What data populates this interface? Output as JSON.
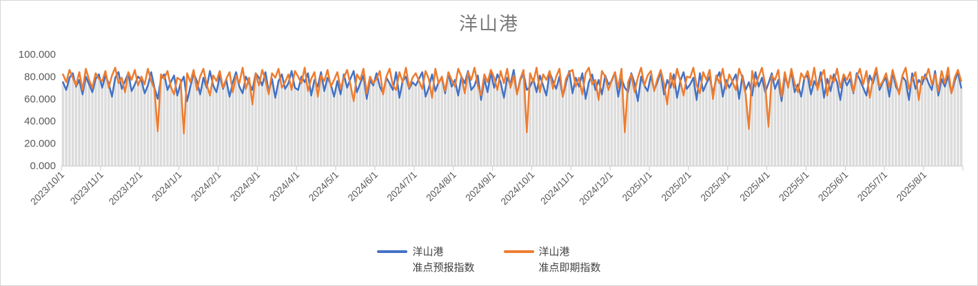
{
  "title": "洋山港",
  "colors": {
    "title_text": "#7A7A7A",
    "tick_text": "#595959",
    "legend_text": "#404040",
    "axis_line": "#C9C9C9",
    "drop_bars": "#DCDCDC",
    "series_forecast": "#4472C4",
    "series_spot": "#ED7D31"
  },
  "chart_data": {
    "type": "line",
    "title": "洋山港",
    "xlabel": "",
    "ylabel": "",
    "ylim": [
      0,
      100
    ],
    "y_tick_values": [
      0,
      20,
      40,
      60,
      80,
      100
    ],
    "y_tick_labels": [
      "0.000",
      "20.000",
      "40.000",
      "60.000",
      "80.000",
      "100.000"
    ],
    "x_tick_labels": [
      "2023/10/1",
      "2023/11/1",
      "2023/12/1",
      "2024/1/1",
      "2024/2/1",
      "2024/3/1",
      "2024/4/1",
      "2024/5/1",
      "2024/6/1",
      "2024/7/1",
      "2024/8/1",
      "2024/9/1",
      "2024/10/1",
      "2024/11/1",
      "2024/12/1",
      "2025/1/1",
      "2025/2/1",
      "2025/3/1",
      "2025/4/1",
      "2025/5/1",
      "2025/6/1",
      "2025/7/1",
      "2025/8/1"
    ],
    "points_per_month": 12,
    "grid": "off",
    "drop_lines": true,
    "legend_position": "bottom",
    "series": [
      {
        "name": "洋山港准点预报指数",
        "name_line1": "洋山港",
        "name_line2": "准点预报指数",
        "color": "#4472C4",
        "values": [
          75,
          68,
          79,
          83,
          71,
          77,
          64,
          80,
          73,
          66,
          78,
          82,
          70,
          81,
          74,
          62,
          79,
          84,
          69,
          76,
          83,
          67,
          73,
          80,
          77,
          65,
          72,
          84,
          70,
          60,
          78,
          82,
          68,
          75,
          81,
          63,
          74,
          80,
          58,
          71,
          83,
          76,
          64,
          79,
          70,
          85,
          72,
          66,
          81,
          69,
          77,
          62,
          75,
          84,
          71,
          65,
          80,
          74,
          68,
          83,
          79,
          72,
          84,
          66,
          78,
          61,
          76,
          82,
          69,
          74,
          85,
          70,
          68,
          80,
          75,
          83,
          63,
          77,
          71,
          84,
          67,
          79,
          73,
          62,
          76,
          64,
          82,
          70,
          78,
          85,
          66,
          74,
          81,
          60,
          77,
          72,
          83,
          71,
          65,
          79,
          74,
          68,
          84,
          61,
          76,
          80,
          69,
          75,
          72,
          78,
          84,
          62,
          70,
          82,
          67,
          75,
          79,
          65,
          83,
          71,
          77,
          63,
          80,
          74,
          85,
          68,
          72,
          81,
          59,
          78,
          66,
          84,
          70,
          82,
          75,
          61,
          79,
          73,
          86,
          64,
          77,
          83,
          68,
          71,
          78,
          66,
          81,
          72,
          63,
          84,
          76,
          69,
          80,
          62,
          74,
          85,
          65,
          79,
          71,
          83,
          60,
          75,
          82,
          68,
          77,
          64,
          81,
          73,
          76,
          84,
          62,
          78,
          70,
          66,
          83,
          74,
          58,
          80,
          72,
          67,
          81,
          68,
          75,
          85,
          64,
          77,
          70,
          82,
          61,
          76,
          84,
          69,
          73,
          79,
          59,
          83,
          67,
          74,
          80,
          65,
          78,
          84,
          62,
          77,
          70,
          76,
          82,
          60,
          81,
          68,
          75,
          63,
          84,
          71,
          79,
          66,
          74,
          83,
          69,
          77,
          58,
          80,
          72,
          85,
          66,
          73,
          62,
          79,
          81,
          64,
          76,
          70,
          84,
          61,
          78,
          67,
          82,
          75,
          59,
          80,
          72,
          78,
          65,
          83,
          77,
          70,
          63,
          81,
          74,
          86,
          68,
          75,
          79,
          62,
          84,
          71,
          66,
          80,
          76,
          59,
          83,
          69,
          77,
          73,
          82,
          74,
          68,
          85,
          63,
          78,
          71,
          81,
          65,
          76,
          84,
          70
        ]
      },
      {
        "name": "洋山港准点即期指数",
        "name_line1": "洋山港",
        "name_line2": "准点即期指数",
        "color": "#ED7D31",
        "values": [
          82,
          75,
          86,
          79,
          72,
          84,
          68,
          87,
          77,
          70,
          83,
          78,
          76,
          85,
          70,
          81,
          88,
          74,
          79,
          66,
          84,
          77,
          86,
          72,
          80,
          73,
          87,
          76,
          69,
          31,
          82,
          78,
          85,
          71,
          64,
          79,
          77,
          29,
          83,
          75,
          86,
          68,
          80,
          87,
          73,
          63,
          81,
          76,
          85,
          70,
          78,
          84,
          66,
          81,
          74,
          88,
          69,
          79,
          55,
          83,
          72,
          86,
          77,
          64,
          83,
          79,
          87,
          70,
          75,
          82,
          68,
          85,
          80,
          74,
          88,
          67,
          78,
          84,
          62,
          81,
          76,
          86,
          71,
          77,
          84,
          69,
          79,
          86,
          73,
          58,
          82,
          77,
          87,
          65,
          80,
          74,
          78,
          85,
          64,
          80,
          87,
          72,
          68,
          84,
          75,
          88,
          70,
          79,
          83,
          76,
          69,
          85,
          78,
          61,
          87,
          74,
          80,
          67,
          84,
          77,
          71,
          87,
          80,
          65,
          84,
          77,
          88,
          72,
          63,
          82,
          75,
          86,
          79,
          68,
          85,
          74,
          87,
          70,
          81,
          64,
          78,
          86,
          30,
          83,
          75,
          88,
          66,
          82,
          77,
          85,
          69,
          80,
          87,
          62,
          78,
          84,
          86,
          71,
          79,
          64,
          83,
          88,
          73,
          77,
          59,
          85,
          80,
          68,
          77,
          84,
          70,
          87,
          30,
          75,
          82,
          66,
          79,
          88,
          72,
          81,
          85,
          67,
          78,
          86,
          74,
          55,
          83,
          70,
          87,
          76,
          63,
          80,
          79,
          88,
          72,
          65,
          84,
          77,
          86,
          60,
          81,
          74,
          87,
          69,
          82,
          75,
          68,
          87,
          79,
          64,
          33,
          85,
          71,
          80,
          88,
          73,
          35,
          81,
          77,
          86,
          62,
          84,
          70,
          87,
          74,
          66,
          83,
          78,
          85,
          72,
          88,
          68,
          79,
          86,
          63,
          81,
          75,
          87,
          70,
          82,
          77,
          84,
          66,
          80,
          87,
          73,
          85,
          61,
          78,
          88,
          71,
          76,
          83,
          70,
          86,
          75,
          64,
          81,
          88,
          69,
          77,
          84,
          59,
          80,
          78,
          87,
          73,
          82,
          67,
          85,
          74,
          88,
          65,
          79,
          86,
          76
        ]
      }
    ]
  },
  "legend": {
    "items": [
      {
        "line1": "洋山港",
        "line2": "准点预报指数"
      },
      {
        "line1": "洋山港",
        "line2": "准点即期指数"
      }
    ]
  }
}
